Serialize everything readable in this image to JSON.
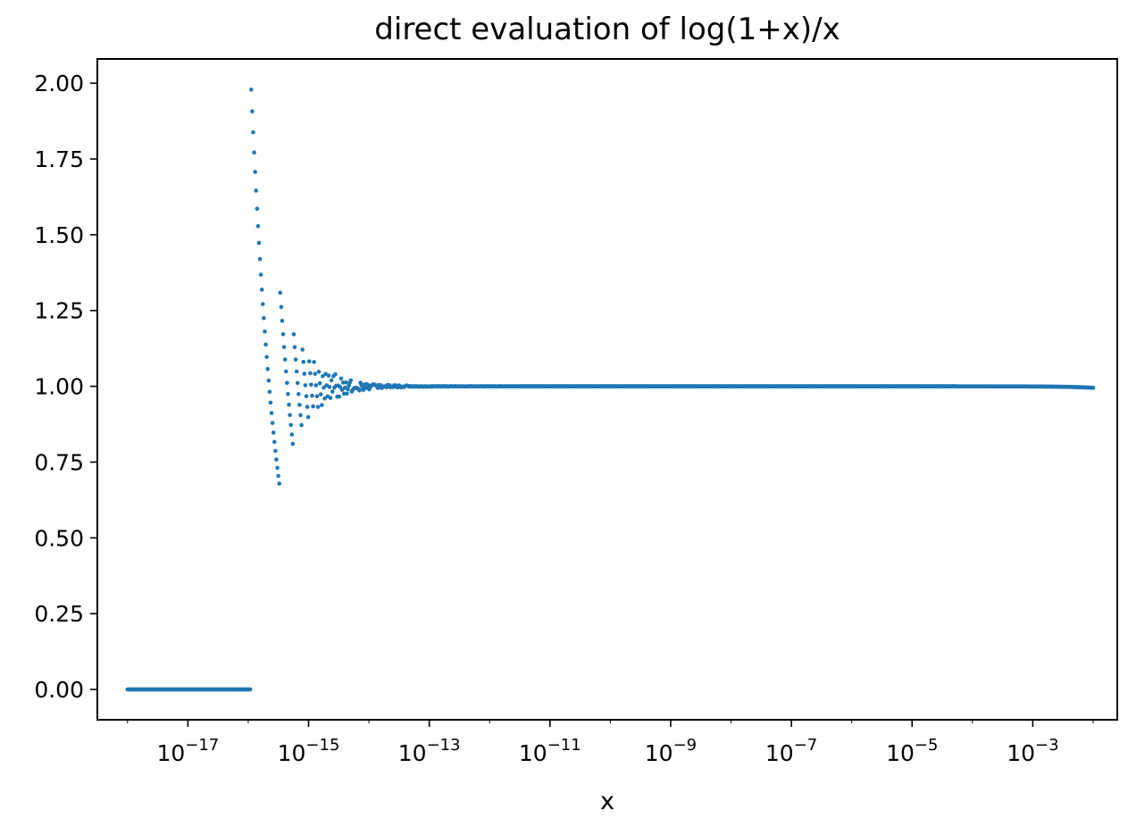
{
  "chart_data": {
    "type": "scatter",
    "title": "direct evaluation of log(1+x)/x",
    "xlabel": "x",
    "ylabel": "",
    "x_scale": "log",
    "xlim_exponent": [
      -18.5,
      -1.6
    ],
    "ylim": [
      -0.1,
      2.08
    ],
    "x_ticks": [
      {
        "base": "10",
        "exp": "−17",
        "value": -17
      },
      {
        "base": "10",
        "exp": "−15",
        "value": -15
      },
      {
        "base": "10",
        "exp": "−13",
        "value": -13
      },
      {
        "base": "10",
        "exp": "−11",
        "value": -11
      },
      {
        "base": "10",
        "exp": "−9",
        "value": -9
      },
      {
        "base": "10",
        "exp": "−7",
        "value": -7
      },
      {
        "base": "10",
        "exp": "−5",
        "value": -5
      },
      {
        "base": "10",
        "exp": "−3",
        "value": -3
      }
    ],
    "y_ticks": [
      {
        "label": "0.00",
        "value": 0.0
      },
      {
        "label": "0.25",
        "value": 0.25
      },
      {
        "label": "0.50",
        "value": 0.5
      },
      {
        "label": "0.75",
        "value": 0.75
      },
      {
        "label": "1.00",
        "value": 1.0
      },
      {
        "label": "1.25",
        "value": 1.25
      },
      {
        "label": "1.50",
        "value": 1.5
      },
      {
        "label": "1.75",
        "value": 1.75
      },
      {
        "label": "2.00",
        "value": 2.0
      }
    ],
    "grid": false,
    "marker_color": "#1f77b4",
    "x_range": [
      1e-18,
      0.01
    ],
    "point_count": 1000,
    "function": "log(1+x)/x"
  }
}
